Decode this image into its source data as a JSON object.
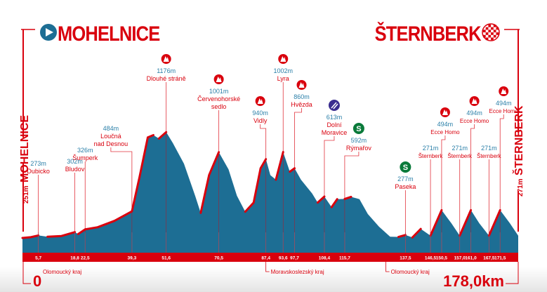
{
  "header": {
    "start": "MOHELNICE",
    "finish": "ŠTERNBERK"
  },
  "colors": {
    "red": "#d9000d",
    "blue": "#1d6e94",
    "label_blue": "#2a7fa8",
    "sprint": "#0a7a3a",
    "feed": "#3a2d8f"
  },
  "chart_data": {
    "type": "area",
    "title": "Mohelnice – Šternberk",
    "xlim": [
      0,
      178
    ],
    "ylim": [
      251,
      1176
    ],
    "start_label": "251m MOHELNICE",
    "finish_label": "271m ŠTERNBERK",
    "start_km": "0",
    "total_km": "178,0km",
    "profile": [
      [
        0,
        251
      ],
      [
        3,
        258
      ],
      [
        5.7,
        273
      ],
      [
        9,
        262
      ],
      [
        14,
        268
      ],
      [
        18.8,
        302
      ],
      [
        20,
        285
      ],
      [
        22.5,
        326
      ],
      [
        27,
        345
      ],
      [
        33,
        400
      ],
      [
        39.3,
        484
      ],
      [
        42,
        780
      ],
      [
        45,
        1130
      ],
      [
        47,
        1150
      ],
      [
        49,
        1120
      ],
      [
        51.6,
        1176
      ],
      [
        54,
        1080
      ],
      [
        58,
        900
      ],
      [
        62,
        620
      ],
      [
        64,
        470
      ],
      [
        67,
        800
      ],
      [
        70.5,
        1001
      ],
      [
        74,
        850
      ],
      [
        77,
        620
      ],
      [
        80,
        480
      ],
      [
        83,
        560
      ],
      [
        85.5,
        860
      ],
      [
        87.4,
        940
      ],
      [
        89,
        800
      ],
      [
        91,
        760
      ],
      [
        93.6,
        1002
      ],
      [
        96,
        830
      ],
      [
        97.7,
        860
      ],
      [
        100,
        760
      ],
      [
        104,
        640
      ],
      [
        106,
        560
      ],
      [
        108.4,
        613
      ],
      [
        111,
        520
      ],
      [
        113,
        590
      ],
      [
        115.7,
        592
      ],
      [
        118,
        610
      ],
      [
        121,
        590
      ],
      [
        124,
        460
      ],
      [
        128,
        350
      ],
      [
        132,
        262
      ],
      [
        135,
        260
      ],
      [
        137.5,
        277
      ],
      [
        140,
        255
      ],
      [
        143,
        330
      ],
      [
        146.5,
        271
      ],
      [
        150.5,
        494
      ],
      [
        154,
        380
      ],
      [
        157,
        271
      ],
      [
        161,
        494
      ],
      [
        164,
        380
      ],
      [
        167.5,
        271
      ],
      [
        171.5,
        494
      ],
      [
        175,
        380
      ],
      [
        178,
        271
      ]
    ],
    "km_ticks": [
      "5,7",
      "18,8",
      "22,5",
      "39,3",
      "51,6",
      "70,5",
      "87,4",
      "93,6",
      "97,7",
      "108,4",
      "115,7",
      "137,5",
      "146,5",
      "150,5",
      "157,0",
      "161,0",
      "167,5",
      "171,5"
    ],
    "km_values": [
      5.7,
      18.8,
      22.5,
      39.3,
      51.6,
      70.5,
      87.4,
      93.6,
      97.7,
      108.4,
      115.7,
      137.5,
      146.5,
      150.5,
      157.0,
      161.0,
      167.5,
      171.5
    ],
    "points": [
      {
        "km": 5.7,
        "alt": "273m",
        "name": "Dubicko",
        "type": "town"
      },
      {
        "km": 18.8,
        "alt": "302m",
        "name": "Bludov",
        "type": "town"
      },
      {
        "km": 22.5,
        "alt": "326m",
        "name": "Šumperk",
        "type": "town"
      },
      {
        "km": 39.3,
        "alt": "484m",
        "name": "Loučná nad Desnou",
        "type": "town"
      },
      {
        "km": 51.6,
        "alt": "1176m",
        "name": "Dlouhé stráně",
        "type": "climb"
      },
      {
        "km": 70.5,
        "alt": "1001m",
        "name": "Červenohorské sedlo",
        "type": "climb"
      },
      {
        "km": 87.4,
        "alt": "940m",
        "name": "Vidly",
        "type": "climb"
      },
      {
        "km": 93.6,
        "alt": "1002m",
        "name": "Lyra",
        "type": "climb"
      },
      {
        "km": 97.7,
        "alt": "860m",
        "name": "Hvězda",
        "type": "climb"
      },
      {
        "km": 108.4,
        "alt": "613m",
        "name": "Dolní Moravice",
        "type": "feed"
      },
      {
        "km": 115.7,
        "alt": "592m",
        "name": "Rýmařov",
        "type": "sprint"
      },
      {
        "km": 137.5,
        "alt": "277m",
        "name": "Paseka",
        "type": "sprint"
      },
      {
        "km": 146.5,
        "alt": "271m",
        "name": "Šternberk",
        "type": "town"
      },
      {
        "km": 150.5,
        "alt": "494m",
        "name": "Ecce Homo",
        "type": "climb"
      },
      {
        "km": 157.0,
        "alt": "271m",
        "name": "Šternberk",
        "type": "town"
      },
      {
        "km": 161.0,
        "alt": "494m",
        "name": "Ecce Homo",
        "type": "climb"
      },
      {
        "km": 167.5,
        "alt": "271m",
        "name": "Šternberk",
        "type": "town"
      },
      {
        "km": 171.5,
        "alt": "494m",
        "name": "Ecce Homo",
        "type": "climb"
      }
    ],
    "regions": [
      {
        "km": 0,
        "name": "Olomoucký kraj"
      },
      {
        "km": 87.4,
        "name": "Moravskoslezský kraj"
      },
      {
        "km": 130.5,
        "name": "Olomoucký kraj"
      }
    ],
    "sprint_icon": "S"
  }
}
